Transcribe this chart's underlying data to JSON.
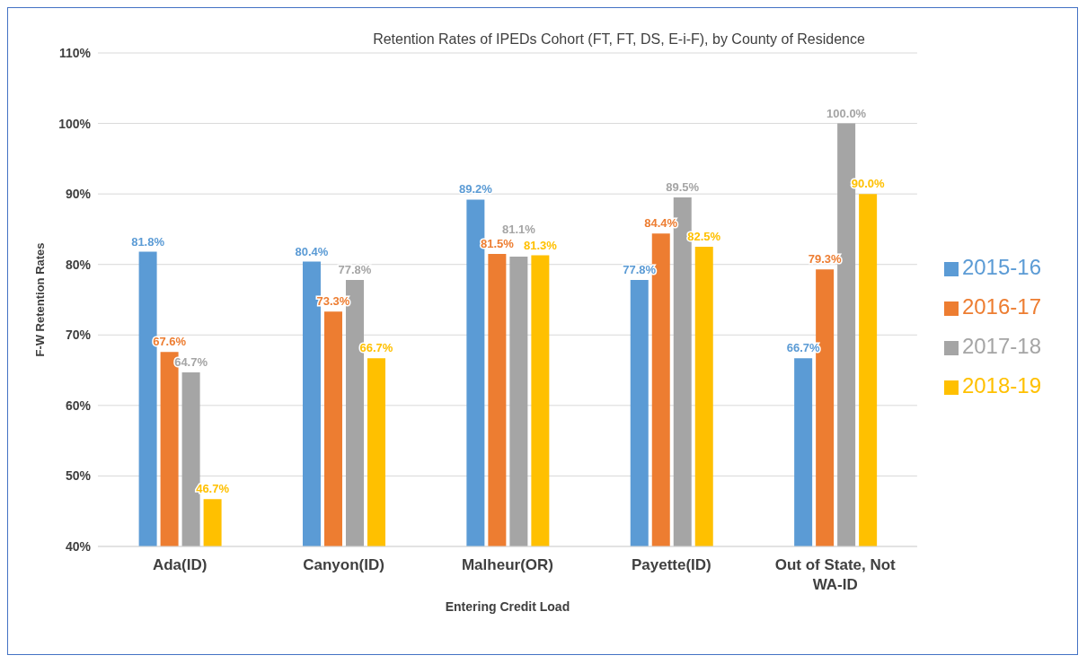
{
  "chart_data": {
    "type": "bar",
    "title": "Retention Rates of IPEDs Cohort (FT, FT, DS, E-i-F), by County of Residence",
    "xlabel": "Entering Credit Load",
    "ylabel": "F-W Retention Rates",
    "categories": [
      "Ada(ID)",
      "Canyon(ID)",
      "Malheur(OR)",
      "Payette(ID)",
      "Out of State, Not WA-ID"
    ],
    "series": [
      {
        "name": "2015-16",
        "color": "#5b9bd5",
        "values": [
          81.8,
          80.4,
          89.2,
          77.8,
          66.7
        ],
        "value_labels": [
          "81.8%",
          "80.4%",
          "89.2%",
          "77.8%",
          "66.7%"
        ]
      },
      {
        "name": "2016-17",
        "color": "#ed7d31",
        "values": [
          67.6,
          73.3,
          81.5,
          84.4,
          79.3
        ],
        "value_labels": [
          "67.6%",
          "73.3%",
          "81.5%",
          "84.4%",
          "79.3%"
        ]
      },
      {
        "name": "2017-18",
        "color": "#a5a5a5",
        "values": [
          64.7,
          77.8,
          81.1,
          89.5,
          100.0
        ],
        "value_labels": [
          "64.7%",
          "77.8%",
          "81.1%",
          "89.5%",
          "100.0%"
        ]
      },
      {
        "name": "2018-19",
        "color": "#ffc000",
        "values": [
          46.7,
          66.7,
          81.3,
          82.5,
          90.0
        ],
        "value_labels": [
          "46.7%",
          "66.7%",
          "81.3%",
          "82.5%",
          "90.0%"
        ]
      }
    ],
    "ylim": [
      40,
      110
    ],
    "yticks": [
      {
        "value": 40,
        "label": "40%"
      },
      {
        "value": 50,
        "label": "50%"
      },
      {
        "value": 60,
        "label": "60%"
      },
      {
        "value": 70,
        "label": "70%"
      },
      {
        "value": 80,
        "label": "80%"
      },
      {
        "value": 90,
        "label": "90%"
      },
      {
        "value": 100,
        "label": "100%"
      },
      {
        "value": 110,
        "label": "110%"
      }
    ],
    "grid": "y",
    "legend": "right"
  }
}
